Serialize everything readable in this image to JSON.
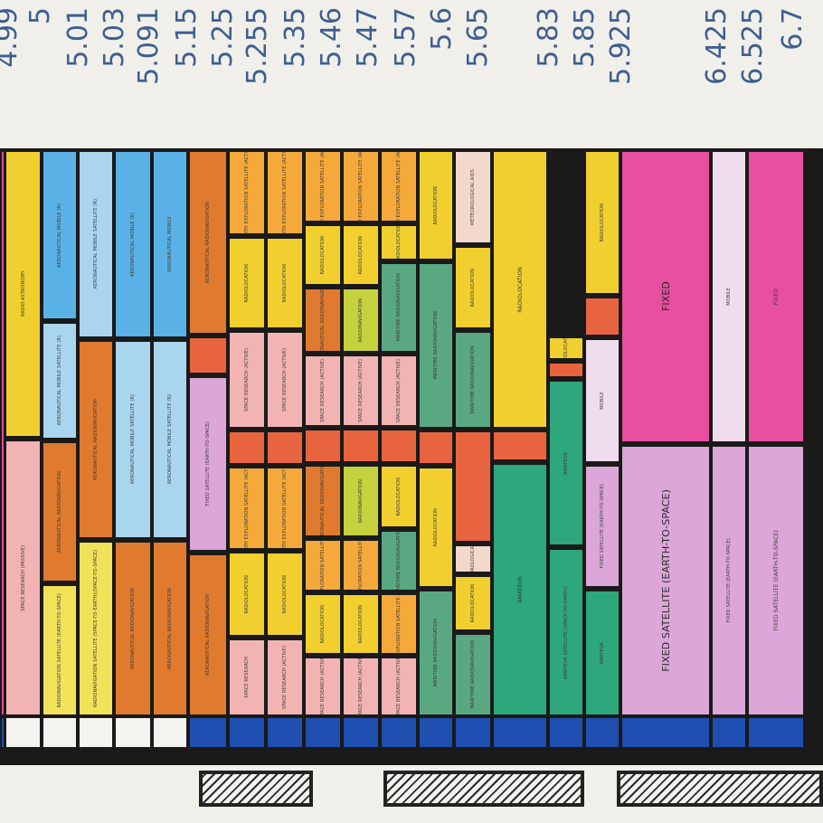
{
  "frequencies": [
    "4.99",
    "5",
    "5.01",
    "5.03",
    "5.091",
    "5.15",
    "5.25",
    "5.255",
    "5.35",
    "5.46",
    "5.47",
    "5.57",
    "5.6",
    "5.65",
    "5.83",
    "5.85",
    "5.925",
    "6.425",
    "6.525",
    "6.7"
  ],
  "columns": [
    {
      "base": "#1f4fb0",
      "cells": [
        {
          "label": "",
          "color": "#e04f9a"
        }
      ]
    },
    {
      "base": "#f5f3ef",
      "cells": [
        {
          "label": "Space Research (passive)",
          "color": "#f2b3b3"
        },
        {
          "label": "RADIO ASTRONOMY",
          "color": "#f1cf2f"
        }
      ]
    },
    {
      "base": "#f5f3ef",
      "cells": [
        {
          "label": "RADIONAVIGATION SATELLITE (EARTH-TO-SPACE)",
          "color": "#f1e25a"
        },
        {
          "label": "AERONAUTICAL RADIONAVIGATION",
          "color": "#e07a2e"
        },
        {
          "label": "AERONAUTICAL MOBILE SATELLITE (R)",
          "color": "#a9d6ee"
        },
        {
          "label": "AERONAUTICAL MOBILE (R)",
          "color": "#5ab1e6"
        }
      ]
    },
    {
      "base": "#f5f3ef",
      "cells": [
        {
          "label": "RADIONAVIGATION SATELLITE (SPACE-TO-EARTH)(SPACE-TO-SPACE)",
          "color": "#f1e25a"
        },
        {
          "label": "AERONAUTICAL RADIONAVIGATION",
          "color": "#e07a2e"
        },
        {
          "label": "AERONAUTICAL MOBILE SATELLITE (R)",
          "color": "#a9d6ee"
        }
      ]
    },
    {
      "base": "#f5f3ef",
      "cells": [
        {
          "label": "AERONAUTICAL RADIONAVIGATION",
          "color": "#e07a2e"
        },
        {
          "label": "AERONAUTICAL MOBILE SATELLITE (R)",
          "color": "#a9d6ee"
        },
        {
          "label": "AERONAUTICAL MOBILE (R)",
          "color": "#5ab1e6"
        }
      ]
    },
    {
      "base": "#f5f3ef",
      "cells": [
        {
          "label": "AERONAUTICAL RADIONAVIGATION",
          "color": "#e07a2e"
        },
        {
          "label": "AERONAUTICAL MOBILE SATELLITE (R)",
          "color": "#a9d6ee"
        },
        {
          "label": "AERONAUTICAL MOBILE",
          "color": "#5ab1e6"
        }
      ]
    },
    {
      "base": "#1f4fb0",
      "cells": [
        {
          "label": "AERONAUTICAL RADIONAVIGATION",
          "color": "#e07a2e"
        },
        {
          "label": "FIXED SATELLITE (EARTH-TO-SPACE)",
          "color": "#dca6d8"
        },
        {
          "label": "",
          "color": "#e8643e"
        },
        {
          "label": "AERONAUTICAL RADIONAVIGATION",
          "color": "#e07a2e"
        }
      ]
    },
    {
      "base": "#1f4fb0",
      "cells": [
        {
          "label": "Space Research",
          "color": "#f2b3b3"
        },
        {
          "label": "Radiolocation",
          "color": "#f1cf2f"
        },
        {
          "label": "Earth Exploration Satellite (active)",
          "color": "#f5a93a"
        },
        {
          "label": "",
          "color": "#e8643e"
        },
        {
          "label": "SPACE RESEARCH (ACTIVE)",
          "color": "#f2b3b3"
        },
        {
          "label": "RADIOLOCATION",
          "color": "#f1cf2f"
        },
        {
          "label": "EARTH EXPLORATION SATELLITE (ACTIVE)",
          "color": "#f5a93a"
        }
      ]
    },
    {
      "base": "#1f4fb0",
      "cells": [
        {
          "label": "Space Research (active)",
          "color": "#f2b3b3"
        },
        {
          "label": "Radiolocation",
          "color": "#f1cf2f"
        },
        {
          "label": "Earth Exploration Satellite (active)",
          "color": "#f5a93a"
        },
        {
          "label": "",
          "color": "#e8643e"
        },
        {
          "label": "SPACE RESEARCH (ACTIVE)",
          "color": "#f2b3b3"
        },
        {
          "label": "RADIOLOCATION",
          "color": "#f1cf2f"
        },
        {
          "label": "EARTH EXPLORATION SATELLITE (ACTIVE)",
          "color": "#f5a93a"
        }
      ]
    },
    {
      "base": "#1f4fb0",
      "cells": [
        {
          "label": "Space Research (active)",
          "color": "#f2b3b3"
        },
        {
          "label": "Radiolocation",
          "color": "#f1cf2f"
        },
        {
          "label": "Earth Exploration Satellite (active)",
          "color": "#f5a93a"
        },
        {
          "label": "AERONAUTICAL RADIONAVIGATION",
          "color": "#e07a2e"
        },
        {
          "label": "",
          "color": "#e8643e"
        },
        {
          "label": "SPACE RESEARCH (ACTIVE)",
          "color": "#f2b3b3"
        },
        {
          "label": "AERONAUTICAL RADIONAVIGATION",
          "color": "#e07a2e"
        },
        {
          "label": "RADIOLOCATION",
          "color": "#f1cf2f"
        },
        {
          "label": "EARTH EXPLORATION SATELLITE (ACTIVE)",
          "color": "#f5a93a"
        }
      ]
    },
    {
      "base": "#1f4fb0",
      "cells": [
        {
          "label": "Space Research (active)",
          "color": "#f2b3b3"
        },
        {
          "label": "Radiolocation",
          "color": "#f1cf2f"
        },
        {
          "label": "Earth Exploration Satellite (active)",
          "color": "#f5a93a"
        },
        {
          "label": "RADIONAVIGATION",
          "color": "#c5d23e"
        },
        {
          "label": "",
          "color": "#e8643e"
        },
        {
          "label": "SPACE RESEARCH (ACTIVE)",
          "color": "#f2b3b3"
        },
        {
          "label": "RADIONAVIGATION",
          "color": "#c5d23e"
        },
        {
          "label": "RADIOLOCATION",
          "color": "#f1cf2f"
        },
        {
          "label": "EARTH EXPLORATION SATELLITE (ACTIVE)",
          "color": "#f5a93a"
        }
      ]
    },
    {
      "base": "#1f4fb0",
      "cells": [
        {
          "label": "Space Research (active)",
          "color": "#f2b3b3"
        },
        {
          "label": "Earth Exploration Satellite (active)",
          "color": "#f5a93a"
        },
        {
          "label": "MARITIME RADIONAVIGATION",
          "color": "#5aa882"
        },
        {
          "label": "RADIOLOCATION",
          "color": "#f1cf2f"
        },
        {
          "label": "",
          "color": "#e8643e"
        },
        {
          "label": "SPACE RESEARCH (ACTIVE)",
          "color": "#f2b3b3"
        },
        {
          "label": "MARITIME RADIONAVIGATION",
          "color": "#5aa882"
        },
        {
          "label": "RADIOLOCATION",
          "color": "#f1cf2f"
        },
        {
          "label": "EARTH EXPLORATION SATELLITE (ACTIVE)",
          "color": "#f5a93a"
        }
      ]
    },
    {
      "base": "#1f4fb0",
      "cells": [
        {
          "label": "MARITIME RADIONAVIGATION",
          "color": "#5aa882"
        },
        {
          "label": "RADIOLOCATION",
          "color": "#f1cf2f"
        },
        {
          "label": "",
          "color": "#e8643e"
        },
        {
          "label": "MARITIME RADIONAVIGATION",
          "color": "#5aa882"
        },
        {
          "label": "RADIOLOCATION",
          "color": "#f1cf2f"
        }
      ]
    },
    {
      "base": "#1f4fb0",
      "cells": [
        {
          "label": "MARITIME RADIONAVIGATION",
          "color": "#5aa882"
        },
        {
          "label": "RADIOLOCATION",
          "color": "#f1cf2f"
        },
        {
          "label": "METEOROLOGICAL AIDS",
          "color": "#f3d9cc"
        },
        {
          "label": "",
          "color": "#e8643e"
        },
        {
          "label": "MARITIME RADIONAVIGATION",
          "color": "#5aa882"
        },
        {
          "label": "RADIOLOCATION",
          "color": "#f1cf2f"
        },
        {
          "label": "METEOROLOGICAL AIDS",
          "color": "#f3d9cc"
        }
      ]
    },
    {
      "base": "#1f4fb0",
      "cells": [
        {
          "label": "Amateur",
          "color": "#2ea77c"
        },
        {
          "label": "",
          "color": "#e8643e"
        },
        {
          "label": "RADIOLOCATION",
          "color": "#f1cf2f"
        }
      ]
    },
    {
      "base": "#1f4fb0",
      "cells": [
        {
          "label": "AMATEUR SATELLITE (space-to-Earth)",
          "color": "#2ea77c"
        },
        {
          "label": "AMATEUR",
          "color": "#2ea77c"
        },
        {
          "label": "",
          "color": "#e8643e"
        },
        {
          "label": "RADIOLOCATION",
          "color": "#f1cf2f"
        }
      ]
    },
    {
      "base": "#1f4fb0",
      "cells": [
        {
          "label": "Amateur",
          "color": "#2ea77c"
        },
        {
          "label": "FIXED SATELLITE (EARTH-TO-SPACE)",
          "color": "#dca6d8"
        },
        {
          "label": "MOBILE",
          "color": "#efdcec"
        },
        {
          "label": "",
          "color": "#e8643e"
        },
        {
          "label": "RADIOLOCATION",
          "color": "#f1cf2f"
        }
      ]
    },
    {
      "base": "#1f4fb0",
      "cells": [
        {
          "label": "FIXED SATELLITE (EARTH-TO-SPACE)",
          "color": "#dca6d8"
        },
        {
          "label": "FIXED",
          "color": "#e84fa0"
        }
      ]
    },
    {
      "base": "#1f4fb0",
      "cells": [
        {
          "label": "FIXED SATELLITE (EARTH-TO-SPACE)",
          "color": "#dca6d8"
        },
        {
          "label": "MOBILE",
          "color": "#efdcec"
        }
      ]
    },
    {
      "base": "#1f4fb0",
      "cells": [
        {
          "label": "FIXED SATELLITE (EARTH-TO-SPACE)",
          "color": "#dca6d8"
        },
        {
          "label": "FIXED",
          "color": "#e84fa0"
        }
      ]
    },
    {
      "base": "#1f4fb0",
      "cells": [
        {
          "label": "",
          "color": "#e84fa0"
        }
      ]
    }
  ]
}
